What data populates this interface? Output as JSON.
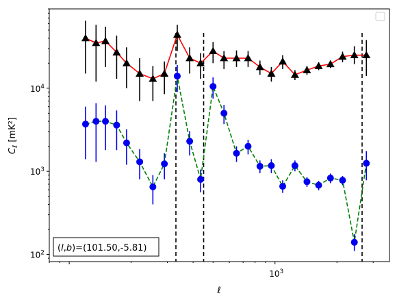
{
  "chart_data": {
    "type": "scatter",
    "title": "",
    "xlabel": "ℓ",
    "ylabel": "C_ℓ [mK²]",
    "x_scale": "log",
    "y_scale": "log",
    "xlim": [
      80,
      3600
    ],
    "ylim": [
      82,
      90000
    ],
    "x_tick_labels": [
      {
        "value": 1000,
        "base": "10",
        "exp": "3"
      }
    ],
    "y_tick_labels": [
      {
        "value": 100,
        "base": "10",
        "exp": "2"
      },
      {
        "value": 1000,
        "base": "10",
        "exp": "3"
      },
      {
        "value": 10000,
        "base": "10",
        "exp": "4"
      }
    ],
    "grid": false,
    "legend": {
      "placement": "upper-right",
      "entries": []
    },
    "annotation": "(l, b)=(101.50,-5.81)",
    "vlines": [
      {
        "x": 330,
        "style": "dashed",
        "color": "#000000"
      },
      {
        "x": 450,
        "style": "dashed",
        "color": "#000000"
      },
      {
        "x": 2650,
        "style": "dashed",
        "color": "#000000"
      }
    ],
    "series": [
      {
        "marker": "triangle",
        "marker_color": "#000000",
        "line_color": "#ff0000",
        "line_style": "solid",
        "error_color": "#000000",
        "points": [
          {
            "x": 120,
            "y": 40000,
            "lo": 15000,
            "hi": 65000
          },
          {
            "x": 135,
            "y": 35000,
            "lo": 12000,
            "hi": 58000
          },
          {
            "x": 150,
            "y": 37000,
            "lo": 18000,
            "hi": 55000
          },
          {
            "x": 170,
            "y": 27000,
            "lo": 13000,
            "hi": 43000
          },
          {
            "x": 190,
            "y": 20000,
            "lo": 10000,
            "hi": 31000
          },
          {
            "x": 220,
            "y": 15000,
            "lo": 7000,
            "hi": 23000
          },
          {
            "x": 255,
            "y": 13000,
            "lo": 7000,
            "hi": 18500
          },
          {
            "x": 290,
            "y": 15000,
            "lo": 8500,
            "hi": 21000
          },
          {
            "x": 335,
            "y": 44000,
            "lo": 28000,
            "hi": 58000
          },
          {
            "x": 385,
            "y": 23000,
            "lo": 15000,
            "hi": 31000
          },
          {
            "x": 435,
            "y": 20000,
            "lo": 13000,
            "hi": 26500
          },
          {
            "x": 500,
            "y": 28000,
            "lo": 20000,
            "hi": 36000
          },
          {
            "x": 565,
            "y": 23000,
            "lo": 17000,
            "hi": 28000
          },
          {
            "x": 650,
            "y": 23000,
            "lo": 18000,
            "hi": 28500
          },
          {
            "x": 740,
            "y": 23000,
            "lo": 18000,
            "hi": 28000
          },
          {
            "x": 845,
            "y": 18000,
            "lo": 14500,
            "hi": 21500
          },
          {
            "x": 960,
            "y": 15000,
            "lo": 12000,
            "hi": 18000
          },
          {
            "x": 1090,
            "y": 21000,
            "lo": 17000,
            "hi": 25000
          },
          {
            "x": 1250,
            "y": 14500,
            "lo": 12500,
            "hi": 16500
          },
          {
            "x": 1430,
            "y": 16500,
            "lo": 14500,
            "hi": 18500
          },
          {
            "x": 1630,
            "y": 18500,
            "lo": 16500,
            "hi": 20500
          },
          {
            "x": 1860,
            "y": 19500,
            "lo": 17500,
            "hi": 21500
          },
          {
            "x": 2130,
            "y": 24000,
            "lo": 20500,
            "hi": 27500
          },
          {
            "x": 2430,
            "y": 25000,
            "lo": 19500,
            "hi": 32000
          },
          {
            "x": 2780,
            "y": 25000,
            "lo": 14000,
            "hi": 38000
          }
        ]
      },
      {
        "marker": "circle",
        "marker_color": "#0000ee",
        "line_color": "#008000",
        "line_style": "dashed",
        "error_color": "#0000ee",
        "points": [
          {
            "x": 120,
            "y": 3700,
            "lo": 1400,
            "hi": 6000
          },
          {
            "x": 135,
            "y": 4000,
            "lo": 1300,
            "hi": 6600
          },
          {
            "x": 150,
            "y": 4000,
            "lo": 1800,
            "hi": 6200
          },
          {
            "x": 170,
            "y": 3600,
            "lo": 1800,
            "hi": 5400
          },
          {
            "x": 190,
            "y": 2200,
            "lo": 1200,
            "hi": 3200
          },
          {
            "x": 220,
            "y": 1300,
            "lo": 800,
            "hi": 1850
          },
          {
            "x": 255,
            "y": 650,
            "lo": 400,
            "hi": 900
          },
          {
            "x": 290,
            "y": 1230,
            "lo": 800,
            "hi": 1650
          },
          {
            "x": 335,
            "y": 14000,
            "lo": 9000,
            "hi": 19000
          },
          {
            "x": 385,
            "y": 2300,
            "lo": 1550,
            "hi": 3050
          },
          {
            "x": 435,
            "y": 800,
            "lo": 560,
            "hi": 1050
          },
          {
            "x": 500,
            "y": 10500,
            "lo": 7500,
            "hi": 13500
          },
          {
            "x": 565,
            "y": 5000,
            "lo": 3700,
            "hi": 6300
          },
          {
            "x": 650,
            "y": 1650,
            "lo": 1300,
            "hi": 2000
          },
          {
            "x": 740,
            "y": 2000,
            "lo": 1600,
            "hi": 2400
          },
          {
            "x": 845,
            "y": 1150,
            "lo": 950,
            "hi": 1350
          },
          {
            "x": 960,
            "y": 1170,
            "lo": 950,
            "hi": 1400
          },
          {
            "x": 1090,
            "y": 660,
            "lo": 550,
            "hi": 780
          },
          {
            "x": 1250,
            "y": 1170,
            "lo": 1000,
            "hi": 1350
          },
          {
            "x": 1430,
            "y": 750,
            "lo": 650,
            "hi": 850
          },
          {
            "x": 1630,
            "y": 680,
            "lo": 590,
            "hi": 770
          },
          {
            "x": 1860,
            "y": 830,
            "lo": 720,
            "hi": 940
          },
          {
            "x": 2130,
            "y": 780,
            "lo": 680,
            "hi": 880
          },
          {
            "x": 2430,
            "y": 140,
            "lo": 110,
            "hi": 175
          },
          {
            "x": 2780,
            "y": 1250,
            "lo": 780,
            "hi": 1750
          }
        ]
      }
    ]
  }
}
